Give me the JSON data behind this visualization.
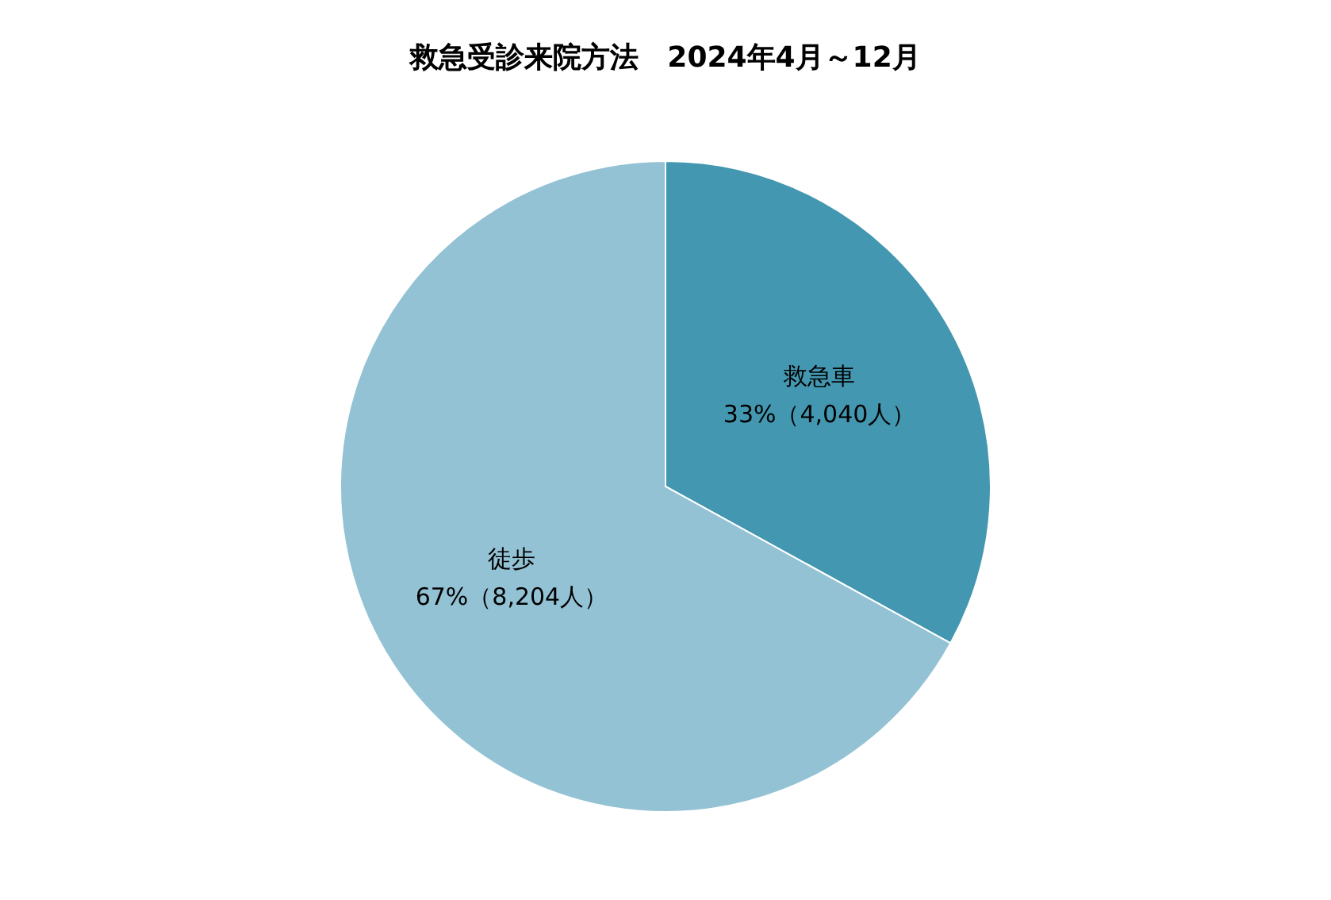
{
  "chart_data": {
    "type": "pie",
    "title": "救急受診来院方法　2024年4月～12月",
    "categories": [
      "救急車",
      "徒歩"
    ],
    "values": [
      4040,
      8204
    ],
    "colors": [
      "#4397b0",
      "#93c2d4"
    ],
    "value_labels": [
      "33%（4,040人）",
      "67%（8,204人）"
    ],
    "legend": false
  }
}
